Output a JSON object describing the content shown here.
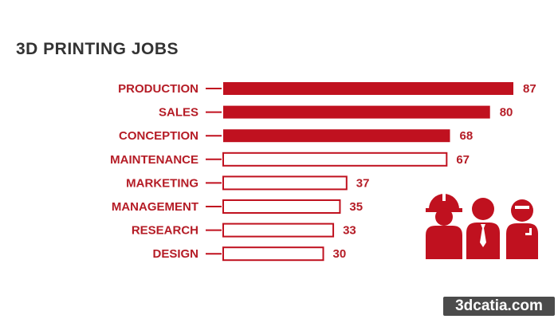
{
  "chart_data": {
    "type": "bar",
    "orientation": "horizontal",
    "title": "3D PRINTING JOBS",
    "categories": [
      "PRODUCTION",
      "SALES",
      "CONCEPTION",
      "MAINTENANCE",
      "MARKETING",
      "MANAGEMENT",
      "RESEARCH",
      "DESIGN"
    ],
    "values": [
      87,
      80,
      68,
      67,
      37,
      35,
      33,
      30
    ],
    "filled": [
      true,
      true,
      true,
      false,
      false,
      false,
      false,
      false
    ],
    "xlim": [
      0,
      87
    ],
    "grid": false,
    "legend": "none",
    "colors": {
      "accent": "#c0111f",
      "label": "#b51c26",
      "title": "#333333"
    }
  },
  "decor": {
    "icons": [
      "construction-worker-icon",
      "businessman-icon",
      "engineer-icon"
    ]
  },
  "watermark": {
    "text": "3dcatia.com"
  }
}
